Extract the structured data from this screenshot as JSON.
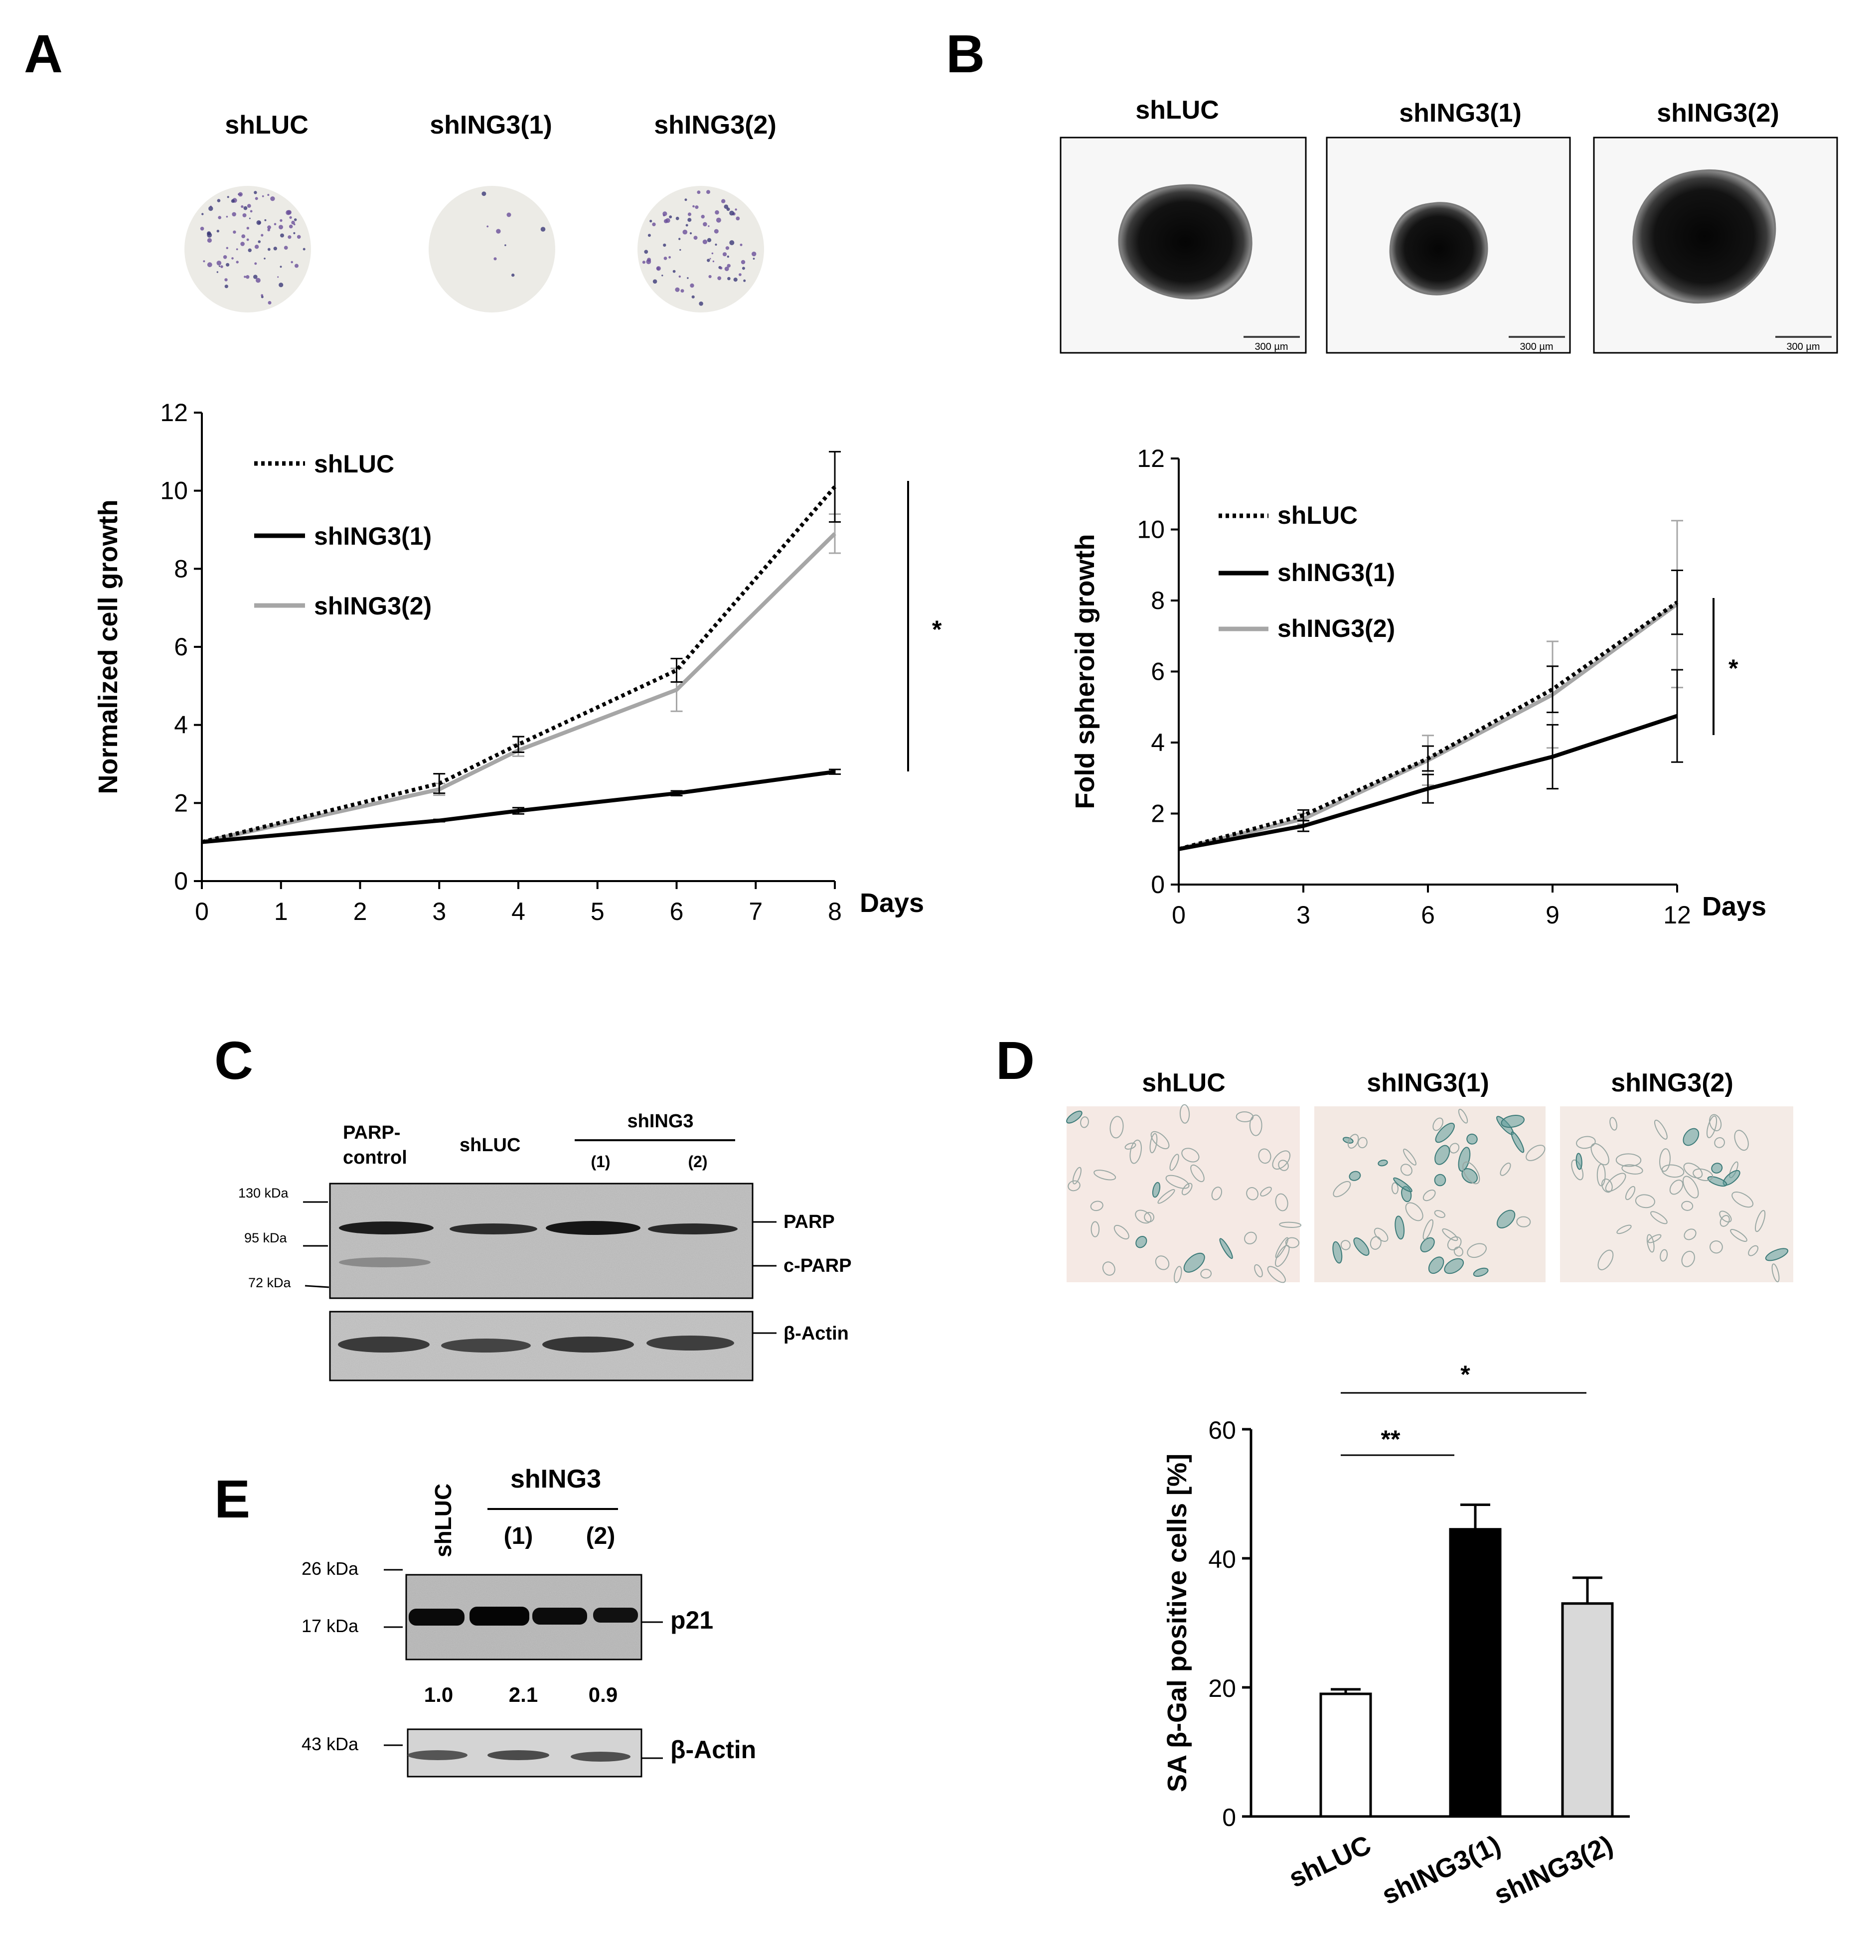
{
  "panels": {
    "A": {
      "label": "A",
      "images": [
        "shLUC",
        "shING3(1)",
        "shING3(2)"
      ]
    },
    "B": {
      "label": "B",
      "images": [
        "shLUC",
        "shING3(1)",
        "shING3(2)"
      ],
      "scale_bar": "300 µm"
    },
    "C": {
      "label": "C",
      "lanes": [
        "PARP-",
        "control",
        "shLUC",
        "shING3",
        "(1)",
        "(2)"
      ],
      "markers": [
        "130 kDa",
        "95 kDa",
        "72 kDa"
      ],
      "bands": [
        "PARP",
        "c-PARP",
        "β-Actin"
      ]
    },
    "D": {
      "label": "D",
      "images": [
        "shLUC",
        "shING3(1)",
        "shING3(2)"
      ]
    },
    "E": {
      "label": "E",
      "lanes": [
        "shLUC",
        "shING3",
        "(1)",
        "(2)"
      ],
      "markers": [
        "26 kDa",
        "17 kDa",
        "43 kDa"
      ],
      "bands": [
        "p21",
        "β-Actin"
      ],
      "quant": [
        "1.0",
        "2.1",
        "0.9"
      ]
    }
  },
  "colors": {
    "black": "#000000",
    "gray": "#a6a6a6",
    "lightgray": "#d9d9d9",
    "white": "#ffffff"
  },
  "chart_data": [
    {
      "id": "A",
      "type": "line",
      "ylabel": "Normalized cell growth",
      "xlabel": "Days",
      "xlim": [
        0,
        8
      ],
      "ylim": [
        0,
        12
      ],
      "xticks": [
        0,
        1,
        2,
        3,
        4,
        5,
        6,
        7,
        8
      ],
      "yticks": [
        0,
        2,
        4,
        6,
        8,
        10,
        12
      ],
      "legend": "top-left",
      "series": [
        {
          "name": "shLUC",
          "style": "dotted",
          "color": "#000000",
          "x": [
            0,
            3,
            4,
            6,
            8
          ],
          "y": [
            1.0,
            2.5,
            3.5,
            5.4,
            10.1
          ],
          "err": [
            0,
            0.25,
            0.2,
            0.3,
            0.9
          ]
        },
        {
          "name": "shING3(1)",
          "style": "solid",
          "color": "#000000",
          "x": [
            0,
            3,
            4,
            6,
            8
          ],
          "y": [
            1.0,
            1.55,
            1.8,
            2.25,
            2.8
          ],
          "err": [
            0,
            0.03,
            0.08,
            0.06,
            0.06
          ]
        },
        {
          "name": "shING3(2)",
          "style": "solid",
          "color": "#a6a6a6",
          "x": [
            0,
            3,
            4,
            6,
            8
          ],
          "y": [
            1.0,
            2.35,
            3.35,
            4.9,
            8.9
          ],
          "err": [
            0,
            0.15,
            0.15,
            0.55,
            0.5
          ]
        }
      ],
      "annotation": "*"
    },
    {
      "id": "B",
      "type": "line",
      "ylabel": "Fold spheroid growth",
      "xlabel": "Days",
      "xlim": [
        0,
        12
      ],
      "ylim": [
        0,
        12
      ],
      "xticks": [
        0,
        3,
        6,
        9,
        12
      ],
      "yticks": [
        0,
        2,
        4,
        6,
        8,
        10,
        12
      ],
      "legend": "top-left",
      "series": [
        {
          "name": "shLUC",
          "style": "dotted",
          "color": "#000000",
          "x": [
            0,
            3,
            6,
            9,
            12
          ],
          "y": [
            1.0,
            1.95,
            3.55,
            5.5,
            7.95
          ],
          "err": [
            0,
            0.15,
            0.35,
            0.65,
            0.9
          ]
        },
        {
          "name": "shING3(1)",
          "style": "solid",
          "color": "#000000",
          "x": [
            0,
            3,
            6,
            9,
            12
          ],
          "y": [
            1.0,
            1.65,
            2.7,
            3.6,
            4.75
          ],
          "err": [
            0,
            0.15,
            0.4,
            0.9,
            1.3
          ]
        },
        {
          "name": "shING3(2)",
          "style": "solid",
          "color": "#a6a6a6",
          "x": [
            0,
            3,
            6,
            9,
            12
          ],
          "y": [
            1.0,
            1.85,
            3.5,
            5.35,
            7.9
          ],
          "err": [
            0,
            0.15,
            0.7,
            1.5,
            2.35
          ]
        }
      ],
      "annotation": "*"
    },
    {
      "id": "D",
      "type": "bar",
      "ylabel": "SA β-Gal positive cells [%]",
      "categories": [
        "shLUC",
        "shING3(1)",
        "shING3(2)"
      ],
      "values": [
        19,
        44.5,
        33
      ],
      "err": [
        0.7,
        3.8,
        4
      ],
      "colors": [
        "#ffffff",
        "#000000",
        "#d9d9d9"
      ],
      "ylim": [
        0,
        60
      ],
      "yticks": [
        0,
        20,
        40,
        60
      ],
      "significance": [
        {
          "from": 0,
          "to": 1,
          "label": "**"
        },
        {
          "from": 0,
          "to": 2,
          "label": "*"
        }
      ]
    }
  ]
}
